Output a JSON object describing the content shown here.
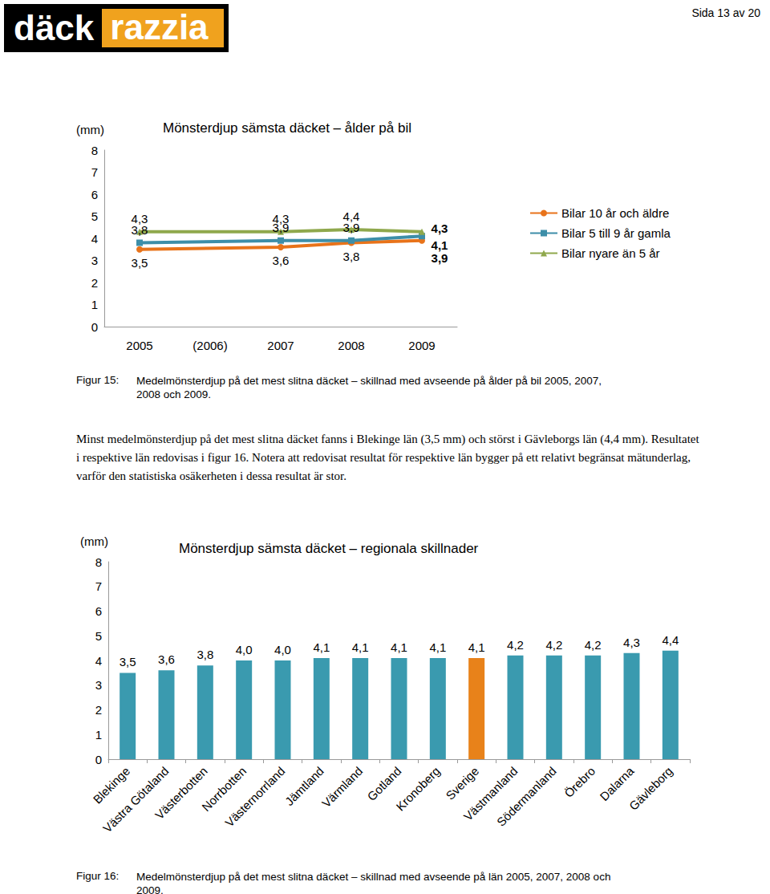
{
  "header": {
    "logo": [
      "däck",
      "razzia"
    ],
    "page": "Sida 13 av 20"
  },
  "chart_data": [
    {
      "type": "line",
      "title": "Mönsterdjup sämsta däcket – ålder på bil",
      "y_label": "(mm)",
      "categories": [
        "2005",
        "(2006)",
        "2007",
        "2008",
        "2009"
      ],
      "series": [
        {
          "name": "Bilar 10 år och äldre",
          "color": "#e8731a",
          "marker": "circle",
          "values": [
            3.5,
            null,
            3.6,
            3.8,
            3.9
          ],
          "value_labels": [
            "3,5",
            null,
            "3,6",
            "3,8",
            "3,9"
          ]
        },
        {
          "name": "Bilar 5 till 9 år gamla",
          "color": "#3d8ea8",
          "marker": "square",
          "values": [
            3.8,
            null,
            3.9,
            3.9,
            4.1
          ],
          "value_labels": [
            "3,8",
            null,
            "3,9",
            "3,9",
            "4,1"
          ]
        },
        {
          "name": "Bilar nyare än 5 år",
          "color": "#8fa84c",
          "marker": "triangle",
          "values": [
            4.3,
            null,
            4.3,
            4.4,
            4.3
          ],
          "value_labels": [
            "4,3",
            null,
            "4,3",
            "4,4",
            "4,3"
          ]
        }
      ],
      "ylim": [
        0,
        8
      ],
      "yticks": [
        0,
        1,
        2,
        3,
        4,
        5,
        6,
        7,
        8
      ],
      "grid": false,
      "data_labels": true,
      "legend": "right"
    },
    {
      "type": "bar",
      "title": "Mönsterdjup sämsta däcket – regionala skillnader",
      "y_label": "(mm)",
      "categories": [
        "Blekinge",
        "Västra Götaland",
        "Västerbotten",
        "Norrbotten",
        "Västernorrland",
        "Jämtland",
        "Värmland",
        "Gotland",
        "Kronoberg",
        "Sverige",
        "Västmanland",
        "Södermanland",
        "Örebro",
        "Dalarna",
        "Gävleborg"
      ],
      "values": [
        3.5,
        3.6,
        3.8,
        4.0,
        4.0,
        4.1,
        4.1,
        4.1,
        4.1,
        4.1,
        4.2,
        4.2,
        4.2,
        4.3,
        4.4
      ],
      "value_labels": [
        "3,5",
        "3,6",
        "3,8",
        "4,0",
        "4,0",
        "4,1",
        "4,1",
        "4,1",
        "4,1",
        "4,1",
        "4,2",
        "4,2",
        "4,2",
        "4,3",
        "4,4"
      ],
      "colors": [
        "#3a9aaf",
        "#3a9aaf",
        "#3a9aaf",
        "#3a9aaf",
        "#3a9aaf",
        "#3a9aaf",
        "#3a9aaf",
        "#3a9aaf",
        "#3a9aaf",
        "#e8821a",
        "#3a9aaf",
        "#3a9aaf",
        "#3a9aaf",
        "#3a9aaf",
        "#3a9aaf"
      ],
      "ylim": [
        0,
        8
      ],
      "yticks": [
        0,
        1,
        2,
        3,
        4,
        5,
        6,
        7,
        8
      ],
      "grid": false,
      "data_labels": true
    }
  ],
  "figures": [
    {
      "label": "Figur 15:",
      "caption": "Medelmönsterdjup på det mest slitna däcket – skillnad med avseende på ålder på bil 2005, 2007, 2008 och 2009."
    },
    {
      "label": "Figur 16:",
      "caption": "Medelmönsterdjup på det mest slitna däcket – skillnad med avseende på län 2005, 2007, 2008 och 2009."
    }
  ],
  "paragraph": "Minst medelmönsterdjup på det mest slitna däcket fanns i Blekinge län (3,5 mm) och störst i Gävleborgs län (4,4 mm). Resultatet i respektive län redovisas i figur 16. Notera att redovisat resultat för respektive län bygger på ett relativt begränsat mätunderlag, varför den statistiska osäkerheten i dessa resultat är stor."
}
